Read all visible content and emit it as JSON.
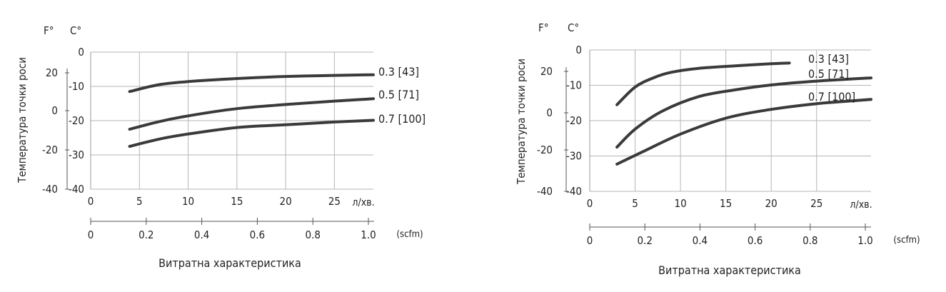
{
  "chart_data": [
    {
      "type": "line",
      "ylabel": "Температура точки роси",
      "xlabel": "Витратна характеристика",
      "y_unit_f": "F°",
      "y_unit_c": "C°",
      "x_unit_primary": "л/хв.",
      "x_unit_secondary": "(scfm)",
      "xlim": [
        0,
        29
      ],
      "ylim_c": [
        -40,
        0
      ],
      "x_ticks": [
        "0",
        "5",
        "10",
        "15",
        "20",
        "25"
      ],
      "x_ticks_scfm": [
        "0",
        "0.2",
        "0.4",
        "0.6",
        "0.8",
        "1.0"
      ],
      "y_ticks_c": [
        "0",
        "-10",
        "-20",
        "-30",
        "-40"
      ],
      "y_ticks_f": [
        "20",
        "0",
        "-20",
        "-40"
      ],
      "grid": true,
      "series": [
        {
          "name": "0.3 [43]",
          "x": [
            4,
            7,
            10,
            15,
            20,
            25,
            29
          ],
          "values": [
            -11.5,
            -9.5,
            -8.6,
            -7.7,
            -7.1,
            -6.8,
            -6.6
          ]
        },
        {
          "name": "0.5 [71]",
          "x": [
            4,
            7,
            10,
            15,
            20,
            25,
            29
          ],
          "values": [
            -22.5,
            -20.3,
            -18.6,
            -16.5,
            -15.3,
            -14.3,
            -13.6
          ]
        },
        {
          "name": "0.7 [100]",
          "x": [
            4,
            7,
            10,
            15,
            20,
            25,
            29
          ],
          "values": [
            -27.5,
            -25.4,
            -23.9,
            -22.0,
            -21.2,
            -20.4,
            -19.9
          ]
        }
      ]
    },
    {
      "type": "line",
      "ylabel": "Температура точки роси",
      "xlabel": "Витратна характеристика",
      "y_unit_f": "F°",
      "y_unit_c": "C°",
      "x_unit_primary": "л/хв.",
      "x_unit_secondary": "(scfm)",
      "xlim": [
        0,
        31
      ],
      "ylim_c": [
        -40,
        0
      ],
      "x_ticks": [
        "0",
        "5",
        "10",
        "15",
        "20",
        "25"
      ],
      "x_ticks_scfm": [
        "0",
        "0.2",
        "0.4",
        "0.6",
        "0.8",
        "1.0"
      ],
      "y_ticks_c": [
        "0",
        "-10",
        "-20",
        "-30",
        "-40"
      ],
      "y_ticks_f": [
        "20",
        "0",
        "-20",
        "-40"
      ],
      "grid": true,
      "series": [
        {
          "name": "0.3 [43]",
          "x": [
            3,
            5,
            7,
            9,
            12,
            16,
            20,
            22
          ],
          "values": [
            -15.5,
            -10.5,
            -7.9,
            -6.3,
            -5.2,
            -4.5,
            -3.9,
            -3.7
          ]
        },
        {
          "name": "0.5 [71]",
          "x": [
            3,
            5,
            8,
            12,
            16,
            20,
            25,
            31
          ],
          "values": [
            -27.5,
            -22.4,
            -17.3,
            -13.2,
            -11.3,
            -9.9,
            -8.8,
            -7.9
          ]
        },
        {
          "name": "0.7 [100]",
          "x": [
            3,
            6,
            10,
            15,
            20,
            25,
            31
          ],
          "values": [
            -32.3,
            -28.6,
            -23.8,
            -19.3,
            -16.8,
            -15.2,
            -14.0
          ]
        }
      ]
    }
  ]
}
